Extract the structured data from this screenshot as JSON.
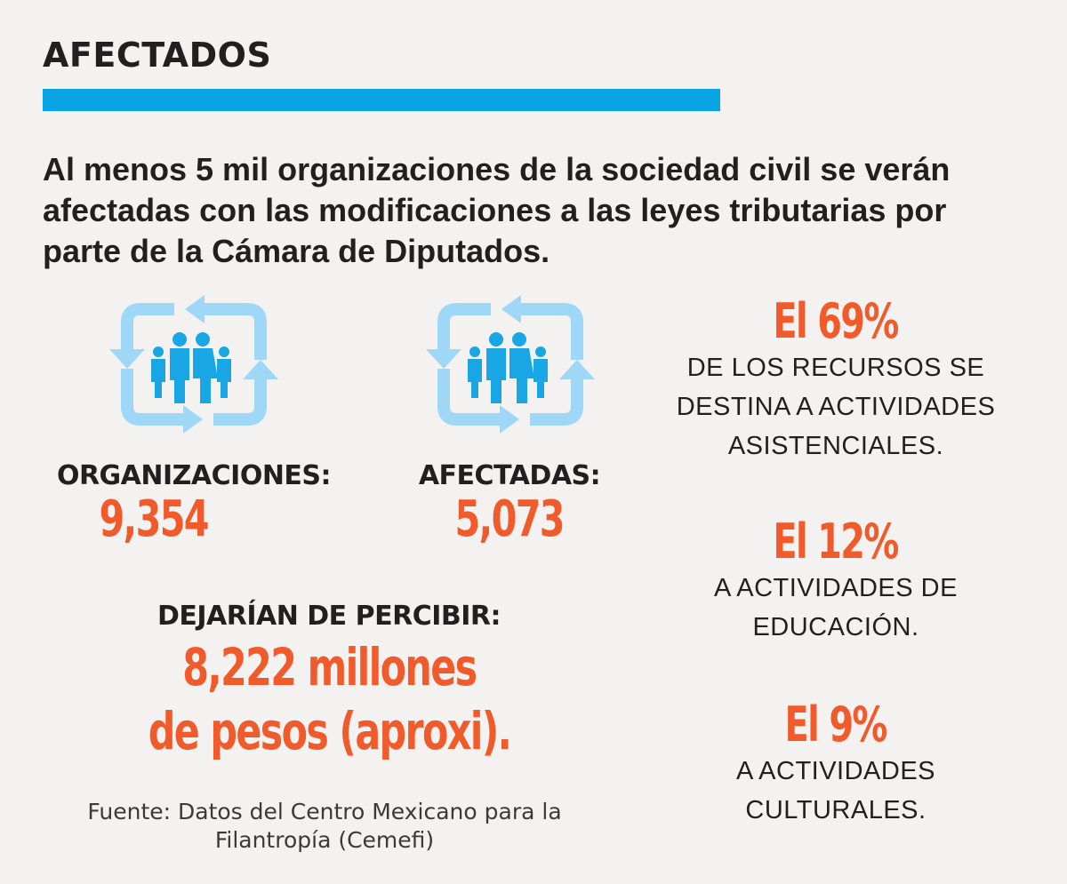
{
  "header": {
    "title": "AFECTADOS"
  },
  "intro": {
    "text": "Al menos 5 mil organizaciones de la sociedad civil se verán afectadas con las modificaciones a las leyes tributarias por parte de la Cámara de Diputados."
  },
  "stats": {
    "organizaciones": {
      "label": "ORGANIZACIONES:",
      "value": "9,354",
      "icon": "family-cycle-icon"
    },
    "afectadas": {
      "label": "AFECTADAS:",
      "value": "5,073",
      "icon": "family-cycle-icon"
    },
    "dejarian": {
      "label": "DEJARÍAN DE PERCIBIR:",
      "line1": "8,222 millones",
      "line2": "de pesos (aproxi)."
    }
  },
  "percentages": [
    {
      "value": "El 69%",
      "desc1": "DE LOS RECURSOS SE",
      "desc2": "DESTINA A ACTIVIDADES",
      "desc3": "ASISTENCIALES."
    },
    {
      "value": "El 12%",
      "desc1": "A ACTIVIDADES DE",
      "desc2": "EDUCACIÓN."
    },
    {
      "value": "El 9%",
      "desc1": "A ACTIVIDADES",
      "desc2": "CULTURALES."
    }
  ],
  "source": {
    "line1": "Fuente: Datos del Centro Mexicano para la",
    "line2": "Filantropía (Cemefi)"
  },
  "colors": {
    "accent_blue": "#0aa3e3",
    "icon_light_blue": "#9fd8f6",
    "icon_people_blue": "#19a6e5",
    "number_orange": "#f15a2b",
    "text_dark": "#231f20",
    "background": "#f3f2f0"
  }
}
